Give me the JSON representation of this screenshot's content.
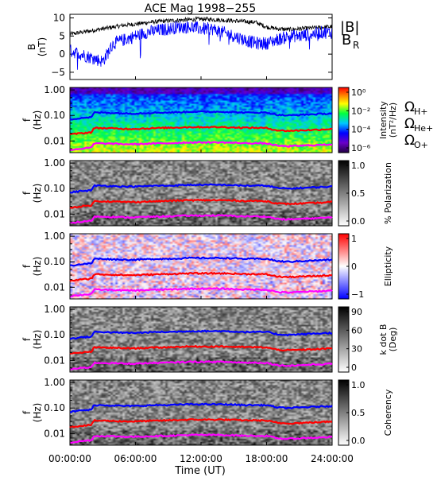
{
  "title": "ACE Mag 1998−255",
  "xlabel": "Time (UT)",
  "x_ticks": [
    "00:00:00",
    "06:00:00",
    "12:00:00",
    "18:00:00",
    "24:00:00"
  ],
  "colors": {
    "blue": "#0000ff",
    "red": "#ff0000",
    "magenta": "#ff00ff",
    "black": "#000000"
  },
  "chart_data": [
    {
      "type": "line",
      "ylabel": "B\n(nT)",
      "ylabel_lines": [
        "B",
        "(nT)"
      ],
      "y_ticks": [
        "10",
        "5",
        "0",
        "−5"
      ],
      "ylim": [
        -7,
        11
      ],
      "xlim_hours": [
        0,
        24
      ],
      "legend": [
        "|B|",
        "B",
        "R"
      ],
      "series": [
        {
          "name": "|B|",
          "color": "#000000",
          "x": [
            0,
            1,
            2,
            3,
            4,
            5,
            6,
            7,
            8,
            9,
            10,
            11,
            12,
            13,
            14,
            15,
            16,
            17,
            18,
            19,
            20,
            21,
            22,
            23,
            24
          ],
          "y": [
            5.5,
            6,
            6.5,
            7,
            7.5,
            8,
            8.3,
            8.7,
            9,
            9.2,
            9.4,
            9.5,
            9.7,
            9.6,
            9.4,
            9.2,
            9,
            8.8,
            7.5,
            7,
            6.8,
            7,
            7.2,
            7.4,
            7.6
          ]
        },
        {
          "name": "B_R",
          "color": "#0000ff",
          "x": [
            0,
            1,
            2,
            3,
            4,
            5,
            6,
            7,
            8,
            9,
            10,
            11,
            12,
            13,
            14,
            15,
            16,
            17,
            18,
            19,
            20,
            21,
            22,
            23,
            24
          ],
          "y": [
            1,
            0,
            -1,
            -2,
            3,
            4,
            5,
            6,
            6.5,
            7,
            7.5,
            7.5,
            7,
            7,
            6,
            5,
            4,
            3,
            3,
            4,
            5,
            5,
            5.5,
            6,
            6
          ]
        }
      ]
    },
    {
      "type": "heatmap",
      "ylabel_lines": [
        "f",
        "(Hz)"
      ],
      "y_ticks": [
        "1.00",
        "0.10",
        "0.01"
      ],
      "colorbar_label": "Intensity\n(nT²/Hz)",
      "colorbar_label_lines": [
        "Intensity",
        "(nT²/Hz)"
      ],
      "colorbar_ticks": [
        "10⁰",
        "10⁻²",
        "10⁻⁴",
        "10⁻⁶"
      ],
      "colormap": "rainbow",
      "legend": [
        "ΩH+",
        "ΩHe+",
        "ΩO+"
      ]
    },
    {
      "type": "heatmap",
      "ylabel_lines": [
        "f",
        "(Hz)"
      ],
      "y_ticks": [
        "1.00",
        "0.10",
        "0.01"
      ],
      "colorbar_label": "% Polarization",
      "colorbar_ticks": [
        "1.0",
        "0.5",
        "0.0"
      ],
      "colormap": "gray"
    },
    {
      "type": "heatmap",
      "ylabel_lines": [
        "f",
        "(Hz)"
      ],
      "y_ticks": [
        "1.00",
        "0.10",
        "0.01"
      ],
      "colorbar_label": "Ellipticity",
      "colorbar_ticks": [
        "1",
        "0",
        "−1"
      ],
      "colormap": "bwr"
    },
    {
      "type": "heatmap",
      "ylabel_lines": [
        "f",
        "(Hz)"
      ],
      "y_ticks": [
        "1.00",
        "0.10",
        "0.01"
      ],
      "colorbar_label": "k dot B\n(Deg)",
      "colorbar_label_lines": [
        "k dot B",
        "(Deg)"
      ],
      "colorbar_ticks": [
        "90",
        "60",
        "30",
        "0"
      ],
      "colormap": "gray"
    },
    {
      "type": "heatmap",
      "ylabel_lines": [
        "f",
        "(Hz)"
      ],
      "y_ticks": [
        "1.00",
        "0.10",
        "0.01"
      ],
      "colorbar_label": "Coherency",
      "colorbar_ticks": [
        "1.0",
        "0.5",
        "0.0"
      ],
      "colormap": "gray"
    }
  ],
  "gyrofrequency_lines": {
    "x_hours": [
      0,
      1,
      2,
      2.2,
      3,
      4,
      5,
      6,
      7,
      8,
      9,
      10,
      11,
      12,
      13,
      14,
      15,
      16,
      17,
      18,
      19,
      20,
      21,
      22,
      23,
      24
    ],
    "H+": [
      0.07,
      0.08,
      0.085,
      0.13,
      0.13,
      0.125,
      0.12,
      0.12,
      0.125,
      0.13,
      0.13,
      0.135,
      0.14,
      0.14,
      0.14,
      0.14,
      0.135,
      0.13,
      0.13,
      0.13,
      0.105,
      0.1,
      0.105,
      0.11,
      0.115,
      0.12
    ],
    "He+": [
      0.018,
      0.02,
      0.022,
      0.032,
      0.032,
      0.031,
      0.03,
      0.03,
      0.031,
      0.032,
      0.033,
      0.034,
      0.035,
      0.035,
      0.035,
      0.035,
      0.034,
      0.033,
      0.033,
      0.032,
      0.026,
      0.025,
      0.026,
      0.027,
      0.028,
      0.03
    ],
    "O+": [
      0.0045,
      0.005,
      0.0055,
      0.008,
      0.008,
      0.0078,
      0.0075,
      0.0075,
      0.0078,
      0.008,
      0.0082,
      0.0085,
      0.0088,
      0.0088,
      0.0088,
      0.0088,
      0.0085,
      0.0082,
      0.0082,
      0.008,
      0.0065,
      0.0062,
      0.0065,
      0.0068,
      0.007,
      0.0075
    ]
  }
}
